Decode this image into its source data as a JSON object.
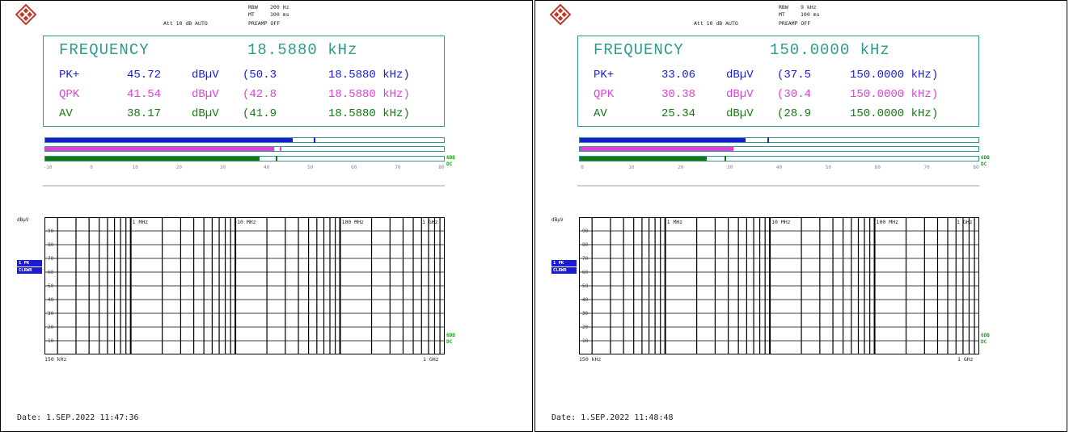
{
  "panels": [
    {
      "rbw_label": "RBW",
      "rbw_value": "200 Hz",
      "mt_label": "MT",
      "mt_value": "100 ms",
      "att": "Att 10 dB AUTO",
      "preamp": "PREAMP OFF",
      "frequency_label": "FREQUENCY",
      "frequency_value": "18.5880 kHz",
      "detectors": [
        {
          "name": "PK+",
          "level": "45.72",
          "unit": "dBµV",
          "limit": "(50.3",
          "freq": "18.5880 kHz)",
          "color": "#1b1bd6",
          "level_db": 45.72,
          "limit_db": 50.3
        },
        {
          "name": "QPK",
          "level": "41.54",
          "unit": "dBµV",
          "limit": "(42.8",
          "freq": "18.5880 kHz)",
          "color": "#e040d8",
          "level_db": 41.54,
          "limit_db": 42.8
        },
        {
          "name": "AV",
          "level": "38.17",
          "unit": "dBµV",
          "limit": "(41.9",
          "freq": "18.5880 kHz)",
          "color": "#137a13",
          "level_db": 38.17,
          "limit_db": 41.9
        }
      ],
      "bar_scale_min": -10,
      "bar_scale_max": 80,
      "bar_ticks": [
        "-10",
        "0",
        "10",
        "20",
        "30",
        "40",
        "50",
        "60",
        "70",
        "80"
      ],
      "bar_side_label_1": "6DB",
      "bar_side_label_2": "DC",
      "grid_unit": "dBµV",
      "trace_label_1": "1 PK",
      "trace_label_2": "CLRWR",
      "grid_y_ticks": [
        "90",
        "80",
        "70",
        "60",
        "50",
        "40",
        "30",
        "20",
        "10"
      ],
      "grid_decade_labels": [
        "1 MHz",
        "10 MHz",
        "100 MHz",
        "1 GHz"
      ],
      "grid_start": "150 kHz",
      "grid_stop": "1 GHz",
      "grid_side_label_1": "6DB",
      "grid_side_label_2": "DC",
      "date": "Date: 1.SEP.2022  11:47:36"
    },
    {
      "rbw_label": "RBW",
      "rbw_value": "9 kHz",
      "mt_label": "MT",
      "mt_value": "100 ms",
      "att": "Att 10 dB AUTO",
      "preamp": "PREAMP OFF",
      "frequency_label": "FREQUENCY",
      "frequency_value": "150.0000 kHz",
      "detectors": [
        {
          "name": "PK+",
          "level": "33.06",
          "unit": "dBµV",
          "limit": "(37.5",
          "freq": "150.0000 kHz)",
          "color": "#1b1bd6",
          "level_db": 33.06,
          "limit_db": 37.5
        },
        {
          "name": "QPK",
          "level": "30.38",
          "unit": "dBµV",
          "limit": "(30.4",
          "freq": "150.0000 kHz)",
          "color": "#e040d8",
          "level_db": 30.38,
          "limit_db": 30.4
        },
        {
          "name": "AV",
          "level": "25.34",
          "unit": "dBµV",
          "limit": "(28.9",
          "freq": "150.0000 kHz)",
          "color": "#137a13",
          "level_db": 25.34,
          "limit_db": 28.9
        }
      ],
      "bar_scale_min": 0,
      "bar_scale_max": 80,
      "bar_ticks": [
        "0",
        "10",
        "20",
        "30",
        "40",
        "50",
        "60",
        "70",
        "80"
      ],
      "bar_side_label_1": "6DB",
      "bar_side_label_2": "DC",
      "grid_unit": "dBµV",
      "trace_label_1": "1 PK",
      "trace_label_2": "CLRWR",
      "grid_y_ticks": [
        "90",
        "80",
        "70",
        "60",
        "50",
        "40",
        "30",
        "20",
        "10"
      ],
      "grid_decade_labels": [
        "1 MHz",
        "10 MHz",
        "100 MHz",
        "1 GHz"
      ],
      "grid_start": "150 kHz",
      "grid_stop": "1 GHz",
      "grid_side_label_1": "6DB",
      "grid_side_label_2": "DC",
      "date": "Date: 1.SEP.2022  11:48:48"
    }
  ]
}
